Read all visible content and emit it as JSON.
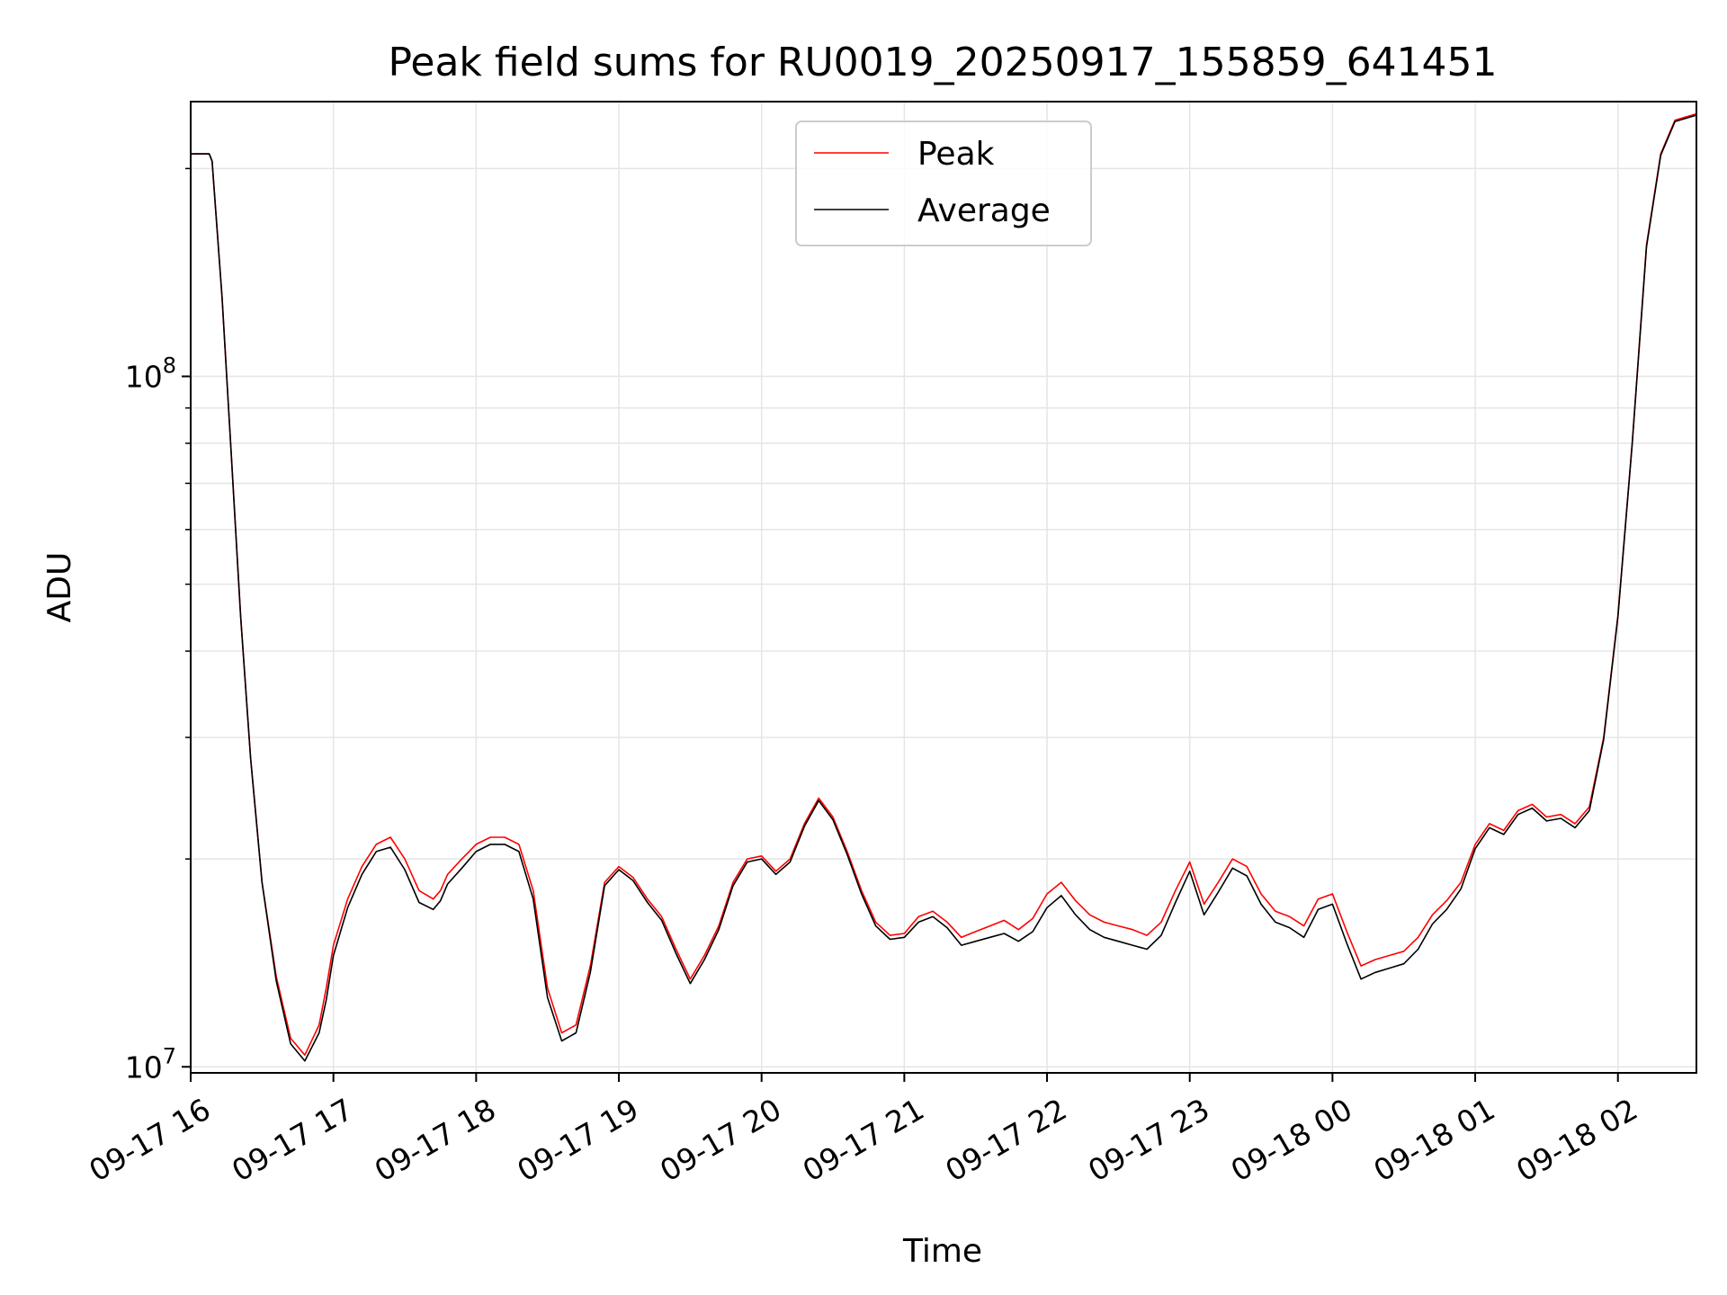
{
  "chart_data": {
    "type": "line",
    "title": "Peak field sums for RU0019_20250917_155859_641451",
    "xlabel": "Time",
    "ylabel": "ADU",
    "yscale": "log",
    "ylim": [
      9800000,
      250000000
    ],
    "xlim_hours": [
      0.0,
      10.55
    ],
    "x_tick_labels": [
      "09-17 16",
      "09-17 17",
      "09-17 18",
      "09-17 19",
      "09-17 20",
      "09-17 21",
      "09-17 22",
      "09-17 23",
      "09-18 00",
      "09-18 01",
      "09-18 02"
    ],
    "x_tick_hours": [
      0,
      1,
      2,
      3,
      4,
      5,
      6,
      7,
      8,
      9,
      10
    ],
    "y_tick_major": [
      {
        "value": 10000000,
        "base": "10",
        "exp": "7"
      },
      {
        "value": 100000000,
        "base": "10",
        "exp": "8"
      }
    ],
    "y_tick_minor": [
      20000000,
      30000000,
      40000000,
      50000000,
      60000000,
      70000000,
      80000000,
      90000000,
      200000000
    ],
    "grid": true,
    "legend_position": "upper center",
    "x_units_note": "x values are hours after 09-17 16:00",
    "series": [
      {
        "name": "Peak",
        "color": "#ff0000",
        "x": [
          0.0,
          0.13,
          0.15,
          0.22,
          0.28,
          0.35,
          0.42,
          0.5,
          0.6,
          0.7,
          0.8,
          0.9,
          0.95,
          1.0,
          1.1,
          1.2,
          1.3,
          1.4,
          1.5,
          1.6,
          1.7,
          1.75,
          1.8,
          1.9,
          2.0,
          2.1,
          2.2,
          2.3,
          2.4,
          2.5,
          2.6,
          2.7,
          2.8,
          2.9,
          3.0,
          3.1,
          3.2,
          3.3,
          3.4,
          3.5,
          3.6,
          3.7,
          3.8,
          3.9,
          4.0,
          4.1,
          4.2,
          4.3,
          4.4,
          4.5,
          4.6,
          4.7,
          4.8,
          4.9,
          5.0,
          5.1,
          5.2,
          5.3,
          5.4,
          5.5,
          5.6,
          5.7,
          5.8,
          5.9,
          6.0,
          6.1,
          6.2,
          6.3,
          6.4,
          6.5,
          6.6,
          6.7,
          6.8,
          6.9,
          7.0,
          7.1,
          7.2,
          7.3,
          7.4,
          7.5,
          7.6,
          7.7,
          7.8,
          7.9,
          8.0,
          8.1,
          8.2,
          8.3,
          8.4,
          8.5,
          8.6,
          8.7,
          8.8,
          8.9,
          9.0,
          9.1,
          9.2,
          9.3,
          9.4,
          9.5,
          9.6,
          9.7,
          9.8,
          9.9,
          10.0,
          10.1,
          10.2,
          10.3,
          10.4,
          10.55
        ],
        "y": [
          210000000,
          210000000,
          205000000,
          130000000,
          80000000,
          45000000,
          28000000,
          18500000,
          13500000,
          11000000,
          10400000,
          11500000,
          13000000,
          15000000,
          17500000,
          19500000,
          21000000,
          21500000,
          20000000,
          18000000,
          17500000,
          18000000,
          19000000,
          20000000,
          21000000,
          21500000,
          21500000,
          21000000,
          18000000,
          13000000,
          11200000,
          11500000,
          14000000,
          18500000,
          19500000,
          18800000,
          17500000,
          16500000,
          14800000,
          13400000,
          14500000,
          16000000,
          18500000,
          20000000,
          20200000,
          19200000,
          20000000,
          22500000,
          24500000,
          23000000,
          20500000,
          18000000,
          16200000,
          15500000,
          15600000,
          16500000,
          16800000,
          16200000,
          15400000,
          15700000,
          16000000,
          16300000,
          15800000,
          16400000,
          17800000,
          18500000,
          17400000,
          16600000,
          16200000,
          16000000,
          15800000,
          15500000,
          16200000,
          18000000,
          19800000,
          17200000,
          18500000,
          20000000,
          19500000,
          17800000,
          16800000,
          16500000,
          16000000,
          17500000,
          17800000,
          15700000,
          14000000,
          14300000,
          14500000,
          14700000,
          15400000,
          16600000,
          17400000,
          18500000,
          21000000,
          22500000,
          22000000,
          23500000,
          24000000,
          23000000,
          23200000,
          22500000,
          23800000,
          30000000,
          45000000,
          80000000,
          155000000,
          210000000,
          235000000,
          240000000
        ]
      },
      {
        "name": "Average",
        "color": "#000000",
        "x": [
          0.0,
          0.13,
          0.15,
          0.22,
          0.28,
          0.35,
          0.42,
          0.5,
          0.6,
          0.7,
          0.8,
          0.9,
          0.95,
          1.0,
          1.1,
          1.2,
          1.3,
          1.4,
          1.5,
          1.6,
          1.7,
          1.75,
          1.8,
          1.9,
          2.0,
          2.1,
          2.2,
          2.3,
          2.4,
          2.5,
          2.6,
          2.7,
          2.8,
          2.9,
          3.0,
          3.1,
          3.2,
          3.3,
          3.4,
          3.5,
          3.6,
          3.7,
          3.8,
          3.9,
          4.0,
          4.1,
          4.2,
          4.3,
          4.4,
          4.5,
          4.6,
          4.7,
          4.8,
          4.9,
          5.0,
          5.1,
          5.2,
          5.3,
          5.4,
          5.5,
          5.6,
          5.7,
          5.8,
          5.9,
          6.0,
          6.1,
          6.2,
          6.3,
          6.4,
          6.5,
          6.6,
          6.7,
          6.8,
          6.9,
          7.0,
          7.1,
          7.2,
          7.3,
          7.4,
          7.5,
          7.6,
          7.7,
          7.8,
          7.9,
          8.0,
          8.1,
          8.2,
          8.3,
          8.4,
          8.5,
          8.6,
          8.7,
          8.8,
          8.9,
          9.0,
          9.1,
          9.2,
          9.3,
          9.4,
          9.5,
          9.6,
          9.7,
          9.8,
          9.9,
          10.0,
          10.1,
          10.2,
          10.3,
          10.4,
          10.55
        ],
        "y": [
          210000000,
          210000000,
          205000000,
          130000000,
          80000000,
          45000000,
          28000000,
          18500000,
          13300000,
          10800000,
          10200000,
          11200000,
          12500000,
          14500000,
          17000000,
          19000000,
          20500000,
          20800000,
          19300000,
          17300000,
          16900000,
          17400000,
          18400000,
          19400000,
          20500000,
          21000000,
          21000000,
          20500000,
          17500000,
          12600000,
          10900000,
          11200000,
          13700000,
          18300000,
          19300000,
          18600000,
          17300000,
          16300000,
          14600000,
          13200000,
          14300000,
          15800000,
          18300000,
          19800000,
          20000000,
          19000000,
          19800000,
          22300000,
          24300000,
          22800000,
          20300000,
          17800000,
          16000000,
          15300000,
          15400000,
          16200000,
          16500000,
          15900000,
          15000000,
          15200000,
          15400000,
          15600000,
          15200000,
          15700000,
          17000000,
          17700000,
          16600000,
          15800000,
          15400000,
          15200000,
          15000000,
          14800000,
          15500000,
          17300000,
          19200000,
          16600000,
          17900000,
          19400000,
          18900000,
          17200000,
          16200000,
          15900000,
          15400000,
          16900000,
          17200000,
          15100000,
          13400000,
          13700000,
          13900000,
          14100000,
          14800000,
          16100000,
          16900000,
          18100000,
          20700000,
          22200000,
          21700000,
          23200000,
          23700000,
          22700000,
          22900000,
          22200000,
          23500000,
          29800000,
          44800000,
          79800000,
          154000000,
          209000000,
          234000000,
          239000000
        ]
      }
    ]
  }
}
